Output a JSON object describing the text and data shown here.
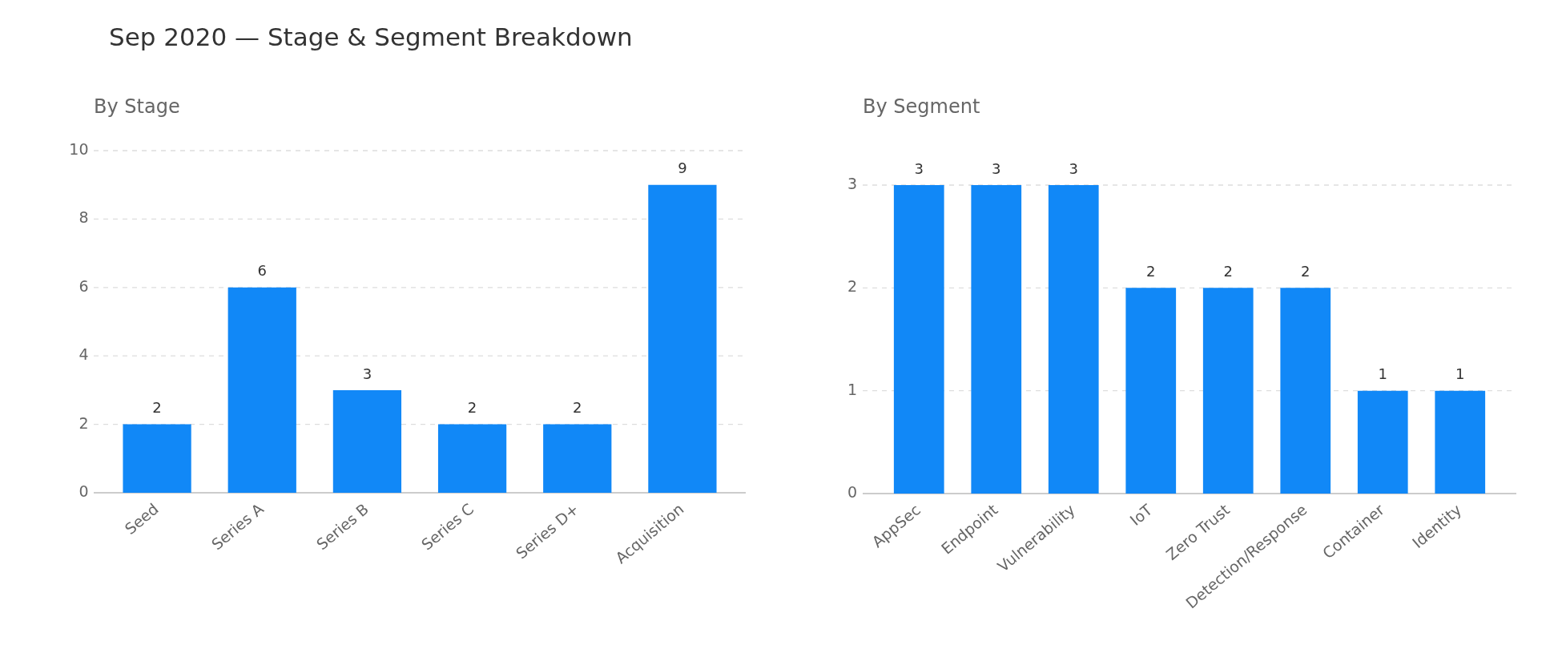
{
  "chart_data": [
    {
      "type": "bar",
      "title": "Sep 2020 — Stage & Segment Breakdown",
      "subtitle": "By Stage",
      "categories": [
        "Seed",
        "Series A",
        "Series B",
        "Series C",
        "Series D+",
        "Acquisition"
      ],
      "values": [
        2,
        6,
        3,
        2,
        2,
        9
      ],
      "color": "#1188f7",
      "ylim": [
        0,
        10
      ],
      "yticks": [
        0,
        2,
        4,
        6,
        8,
        10
      ],
      "grid": "y",
      "data_labels": true
    },
    {
      "type": "bar",
      "subtitle": "By Segment",
      "categories": [
        "AppSec",
        "Endpoint",
        "Vulnerability",
        "IoT",
        "Zero Trust",
        "Detection/Response",
        "Container",
        "Identity"
      ],
      "values": [
        3,
        3,
        3,
        2,
        2,
        2,
        1,
        1
      ],
      "color": "#1188f7",
      "ylim": [
        0,
        3
      ],
      "yticks": [
        0,
        1,
        2,
        3
      ],
      "grid": "y",
      "data_labels": true
    }
  ]
}
